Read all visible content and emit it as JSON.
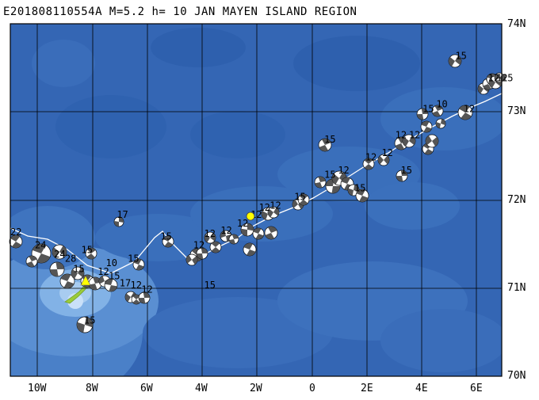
{
  "title": "E201808110554A M=5.2 h= 10 JAN MAYEN ISLAND REGION",
  "latitude_labels": [
    "74N",
    "73N",
    "72N",
    "71N",
    "70N"
  ],
  "longitude_labels": [
    "10W",
    "8W",
    "6W",
    "4W",
    "2W",
    "0",
    "2E",
    "4E",
    "6E"
  ],
  "mechanism_depth_labels": [
    {
      "depth": "22",
      "lon": -11.0,
      "lat": 71.6
    },
    {
      "depth": "24",
      "lon": -10.1,
      "lat": 71.45
    },
    {
      "depth": "24",
      "lon": -9.4,
      "lat": 71.35
    },
    {
      "depth": "28",
      "lon": -9.0,
      "lat": 71.3
    },
    {
      "depth": "15",
      "lon": -8.4,
      "lat": 71.4
    },
    {
      "depth": "15",
      "lon": -8.7,
      "lat": 71.18
    },
    {
      "depth": "10",
      "lon": -7.5,
      "lat": 71.25
    },
    {
      "depth": "12",
      "lon": -7.8,
      "lat": 71.15
    },
    {
      "depth": "15",
      "lon": -7.4,
      "lat": 71.1
    },
    {
      "depth": "17",
      "lon": -7.0,
      "lat": 71.02
    },
    {
      "depth": "12",
      "lon": -6.6,
      "lat": 71.0
    },
    {
      "depth": "12",
      "lon": -6.2,
      "lat": 70.95
    },
    {
      "depth": "15",
      "lon": -6.7,
      "lat": 71.3
    },
    {
      "depth": "17",
      "lon": -7.1,
      "lat": 71.8
    },
    {
      "depth": "15",
      "lon": -5.5,
      "lat": 71.55
    },
    {
      "depth": "15",
      "lon": -8.3,
      "lat": 70.6
    },
    {
      "depth": "15",
      "lon": -3.9,
      "lat": 71.0
    },
    {
      "depth": "12",
      "lon": -4.3,
      "lat": 71.45
    },
    {
      "depth": "12",
      "lon": -3.9,
      "lat": 71.58
    },
    {
      "depth": "12",
      "lon": -3.3,
      "lat": 71.62
    },
    {
      "depth": "12",
      "lon": -2.7,
      "lat": 71.7
    },
    {
      "depth": "12",
      "lon": -2.2,
      "lat": 71.8
    },
    {
      "depth": "12",
      "lon": -1.9,
      "lat": 71.88
    },
    {
      "depth": "12",
      "lon": -1.5,
      "lat": 71.9
    },
    {
      "depth": "15",
      "lon": -0.6,
      "lat": 72.0
    },
    {
      "depth": "15",
      "lon": 0.5,
      "lat": 72.25
    },
    {
      "depth": "12",
      "lon": 1.0,
      "lat": 72.3
    },
    {
      "depth": "15",
      "lon": 1.6,
      "lat": 72.1
    },
    {
      "depth": "15",
      "lon": 0.5,
      "lat": 72.65
    },
    {
      "depth": "12",
      "lon": 2.0,
      "lat": 72.45
    },
    {
      "depth": "12",
      "lon": 2.6,
      "lat": 72.5
    },
    {
      "depth": "12",
      "lon": 3.1,
      "lat": 72.7
    },
    {
      "depth": "12",
      "lon": 3.6,
      "lat": 72.7
    },
    {
      "depth": "15",
      "lon": 3.3,
      "lat": 72.3
    },
    {
      "depth": "15",
      "lon": 4.1,
      "lat": 73.0
    },
    {
      "depth": "10",
      "lon": 4.6,
      "lat": 73.05
    },
    {
      "depth": "12",
      "lon": 5.6,
      "lat": 73.0
    },
    {
      "depth": "15",
      "lon": 5.3,
      "lat": 73.6
    },
    {
      "depth": "12",
      "lon": 6.5,
      "lat": 73.35
    },
    {
      "depth": "12",
      "lon": 6.8,
      "lat": 73.35
    },
    {
      "depth": "15",
      "lon": 7.0,
      "lat": 73.35
    }
  ]
}
